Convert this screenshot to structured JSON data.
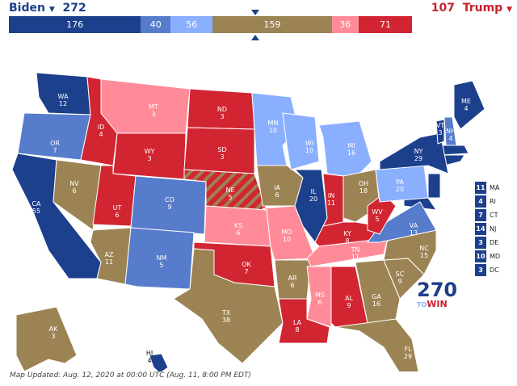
{
  "header": {
    "biden_label": "Biden",
    "biden_total": "272",
    "trump_total": "107",
    "trump_label": "Trump"
  },
  "colors": {
    "safe_d": "#1c408c",
    "likely_d": "#577ccc",
    "lean_d": "#8aafff",
    "tossup": "#9c8353",
    "lean_r": "#ff8b98",
    "safe_r": "#d22532"
  },
  "bar": [
    {
      "value": "176",
      "rating": "safe_d"
    },
    {
      "value": "40",
      "rating": "likely_d"
    },
    {
      "value": "56",
      "rating": "lean_d"
    },
    {
      "value": "159",
      "rating": "tossup"
    },
    {
      "value": "36",
      "rating": "lean_r"
    },
    {
      "value": "71",
      "rating": "safe_r"
    }
  ],
  "states": [
    {
      "abbr": "WA",
      "ev": "12",
      "rating": "safe_d"
    },
    {
      "abbr": "OR",
      "ev": "7",
      "rating": "likely_d"
    },
    {
      "abbr": "CA",
      "ev": "55",
      "rating": "safe_d"
    },
    {
      "abbr": "NV",
      "ev": "6",
      "rating": "tossup"
    },
    {
      "abbr": "ID",
      "ev": "4",
      "rating": "safe_r"
    },
    {
      "abbr": "MT",
      "ev": "3",
      "rating": "lean_r"
    },
    {
      "abbr": "WY",
      "ev": "3",
      "rating": "safe_r"
    },
    {
      "abbr": "UT",
      "ev": "6",
      "rating": "safe_r"
    },
    {
      "abbr": "AZ",
      "ev": "11",
      "rating": "tossup"
    },
    {
      "abbr": "CO",
      "ev": "9",
      "rating": "likely_d"
    },
    {
      "abbr": "NM",
      "ev": "5",
      "rating": "likely_d"
    },
    {
      "abbr": "ND",
      "ev": "3",
      "rating": "safe_r"
    },
    {
      "abbr": "SD",
      "ev": "3",
      "rating": "safe_r"
    },
    {
      "abbr": "NE",
      "ev": "5",
      "rating": "safe_r"
    },
    {
      "abbr": "KS",
      "ev": "6",
      "rating": "lean_r"
    },
    {
      "abbr": "OK",
      "ev": "7",
      "rating": "safe_r"
    },
    {
      "abbr": "TX",
      "ev": "38",
      "rating": "tossup"
    },
    {
      "abbr": "MN",
      "ev": "10",
      "rating": "lean_d"
    },
    {
      "abbr": "IA",
      "ev": "6",
      "rating": "tossup"
    },
    {
      "abbr": "MO",
      "ev": "10",
      "rating": "lean_r"
    },
    {
      "abbr": "AR",
      "ev": "6",
      "rating": "tossup"
    },
    {
      "abbr": "LA",
      "ev": "8",
      "rating": "safe_r"
    },
    {
      "abbr": "WI",
      "ev": "10",
      "rating": "lean_d"
    },
    {
      "abbr": "IL",
      "ev": "20",
      "rating": "safe_d"
    },
    {
      "abbr": "MI",
      "ev": "16",
      "rating": "lean_d"
    },
    {
      "abbr": "IN",
      "ev": "11",
      "rating": "safe_r"
    },
    {
      "abbr": "OH",
      "ev": "18",
      "rating": "tossup"
    },
    {
      "abbr": "KY",
      "ev": "8",
      "rating": "safe_r"
    },
    {
      "abbr": "TN",
      "ev": "11",
      "rating": "lean_r"
    },
    {
      "abbr": "MS",
      "ev": "6",
      "rating": "lean_r"
    },
    {
      "abbr": "AL",
      "ev": "9",
      "rating": "safe_r"
    },
    {
      "abbr": "GA",
      "ev": "16",
      "rating": "tossup"
    },
    {
      "abbr": "FL",
      "ev": "29",
      "rating": "tossup"
    },
    {
      "abbr": "SC",
      "ev": "9",
      "rating": "tossup"
    },
    {
      "abbr": "NC",
      "ev": "15",
      "rating": "tossup"
    },
    {
      "abbr": "VA",
      "ev": "13",
      "rating": "likely_d"
    },
    {
      "abbr": "WV",
      "ev": "5",
      "rating": "safe_r"
    },
    {
      "abbr": "PA",
      "ev": "20",
      "rating": "lean_d"
    },
    {
      "abbr": "NY",
      "ev": "29",
      "rating": "safe_d"
    },
    {
      "abbr": "VT",
      "ev": "3",
      "rating": "safe_d"
    },
    {
      "abbr": "NH",
      "ev": "4",
      "rating": "likely_d"
    },
    {
      "abbr": "ME",
      "ev": "4",
      "rating": "safe_d"
    },
    {
      "abbr": "AK",
      "ev": "3",
      "rating": "tossup"
    },
    {
      "abbr": "HI",
      "ev": "4",
      "rating": "safe_d"
    }
  ],
  "small_states": [
    {
      "ev": "11",
      "abbr": "MA"
    },
    {
      "ev": "4",
      "abbr": "RI"
    },
    {
      "ev": "7",
      "abbr": "CT"
    },
    {
      "ev": "14",
      "abbr": "NJ"
    },
    {
      "ev": "3",
      "abbr": "DE"
    },
    {
      "ev": "10",
      "abbr": "MD"
    },
    {
      "ev": "3",
      "abbr": "DC"
    }
  ],
  "logo": {
    "top": "270",
    "to": "TO",
    "win": "WIN"
  },
  "footer": "Map Updated: Aug. 12, 2020 at 00:00 UTC (Aug. 11, 8:00 PM EDT)"
}
